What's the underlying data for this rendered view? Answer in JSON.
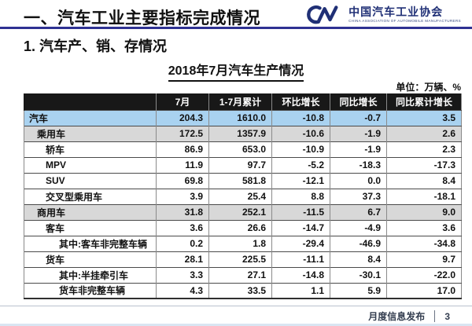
{
  "header": {
    "title": "一、汽车工业主要指标完成情况",
    "logo": {
      "org_cn": "中国汽车工业协会",
      "org_en": "CHINA ASSOCIATION OF AUTOMOBILE MANUFACTURERS",
      "mark_color": "#203076"
    },
    "rule_color": "#2e3192"
  },
  "section_title": "1. 汽车产、销、存情况",
  "table_title": "2018年7月汽车生产情况",
  "unit_label": "单位：万辆、%",
  "table": {
    "columns": [
      "",
      "7月",
      "1-7月累计",
      "环比增长",
      "同比增长",
      "同比累计增长"
    ],
    "header_bg": "#181818",
    "total_row_bg": "#a9d2f0",
    "group_row_bg": "#d8d8d8",
    "rows": [
      {
        "label": "汽车",
        "indent": 0,
        "style": "total",
        "values": [
          "204.3",
          "1610.0",
          "-10.8",
          "-0.7",
          "3.5"
        ]
      },
      {
        "label": "乘用车",
        "indent": 1,
        "style": "group",
        "values": [
          "172.5",
          "1357.9",
          "-10.6",
          "-1.9",
          "2.6"
        ]
      },
      {
        "label": "轿车",
        "indent": 2,
        "style": "plain",
        "values": [
          "86.9",
          "653.0",
          "-10.9",
          "-1.9",
          "2.3"
        ]
      },
      {
        "label": "MPV",
        "indent": 2,
        "style": "plain",
        "values": [
          "11.9",
          "97.7",
          "-5.2",
          "-18.3",
          "-17.3"
        ]
      },
      {
        "label": "SUV",
        "indent": 2,
        "style": "plain",
        "values": [
          "69.8",
          "581.8",
          "-12.1",
          "0.0",
          "8.4"
        ]
      },
      {
        "label": "交叉型乘用车",
        "indent": 2,
        "style": "plain",
        "values": [
          "3.9",
          "25.4",
          "8.8",
          "37.3",
          "-18.1"
        ]
      },
      {
        "label": "商用车",
        "indent": 1,
        "style": "group",
        "values": [
          "31.8",
          "252.1",
          "-11.5",
          "6.7",
          "9.0"
        ]
      },
      {
        "label": "客车",
        "indent": 2,
        "style": "plain",
        "values": [
          "3.6",
          "26.6",
          "-14.7",
          "-4.9",
          "3.6"
        ]
      },
      {
        "label": "其中:客车非完整车辆",
        "indent": 3,
        "style": "plain",
        "values": [
          "0.2",
          "1.8",
          "-29.4",
          "-46.9",
          "-34.8"
        ]
      },
      {
        "label": "货车",
        "indent": 2,
        "style": "plain",
        "values": [
          "28.1",
          "225.5",
          "-11.1",
          "8.4",
          "9.7"
        ]
      },
      {
        "label": "其中:半挂牵引车",
        "indent": 3,
        "style": "plain",
        "values": [
          "3.3",
          "27.1",
          "-14.8",
          "-30.1",
          "-22.0"
        ]
      },
      {
        "label": "货车非完整车辆",
        "indent": 3,
        "style": "plain",
        "values": [
          "4.3",
          "33.5",
          "1.1",
          "5.9",
          "17.0"
        ]
      }
    ]
  },
  "footer": {
    "label": "月度信息发布",
    "page": "3"
  }
}
